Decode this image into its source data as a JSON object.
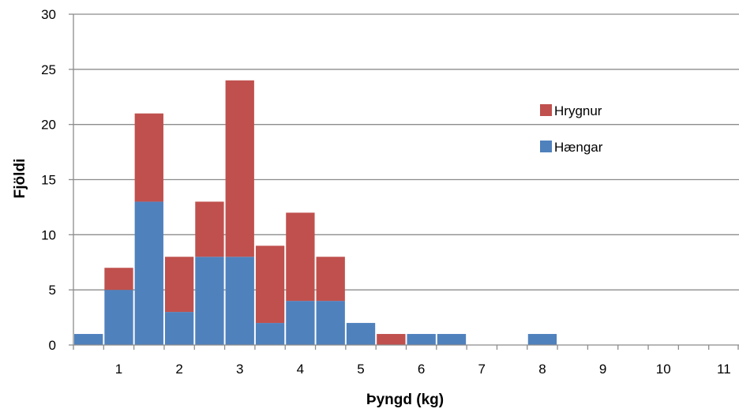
{
  "chart_data": {
    "type": "bar",
    "stacked": true,
    "title": "",
    "xlabel": "Þyngd (kg)",
    "ylabel": "Fjöldi",
    "ylim": [
      0,
      30
    ],
    "yticks": [
      0,
      5,
      10,
      15,
      20,
      25,
      30
    ],
    "xlim": [
      0.25,
      11.25
    ],
    "xticks": [
      1,
      2,
      3,
      4,
      5,
      6,
      7,
      8,
      9,
      10,
      11
    ],
    "bin_width": 0.5,
    "grid": true,
    "legend_position": "right",
    "x": [
      0.5,
      1.0,
      1.5,
      2.0,
      2.5,
      3.0,
      3.5,
      4.0,
      4.5,
      5.0,
      5.5,
      6.0,
      6.5,
      7.0,
      7.5,
      8.0,
      8.5,
      9.0,
      9.5,
      10.0,
      10.5,
      11.0
    ],
    "series": [
      {
        "name": "Hængar",
        "color": "#4F81BD",
        "values": [
          1,
          5,
          13,
          3,
          8,
          8,
          2,
          4,
          4,
          2,
          0,
          1,
          1,
          0,
          0,
          1,
          0,
          0,
          0,
          0,
          0,
          0
        ]
      },
      {
        "name": "Hrygnur",
        "color": "#C0504D",
        "values": [
          0,
          2,
          8,
          5,
          5,
          16,
          7,
          8,
          4,
          0,
          1,
          0,
          0,
          0,
          0,
          0,
          0,
          0,
          0,
          0,
          0,
          0
        ]
      }
    ],
    "legend_order": [
      "Hrygnur",
      "Hængar"
    ]
  }
}
